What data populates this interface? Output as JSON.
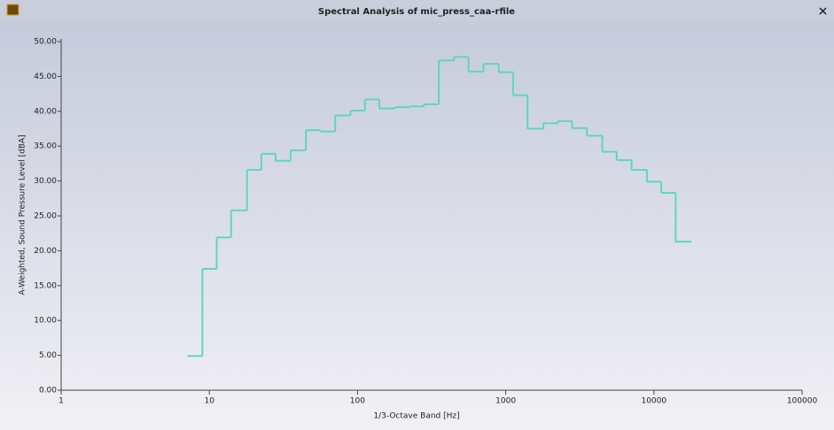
{
  "chart_data": {
    "type": "step",
    "title": "Spectral Analysis of mic_press_caa-rfile",
    "x_label": "1/3-Octave Band [Hz]",
    "y_label": "A-Weighted, Sound Pressure Level [dBA]",
    "x": [
      8,
      10,
      12.5,
      16,
      20,
      25,
      31.5,
      40,
      50,
      63,
      80,
      100,
      125,
      160,
      200,
      250,
      315,
      400,
      500,
      630,
      800,
      1000,
      1250,
      1600,
      2000,
      2500,
      3150,
      4000,
      5000,
      6300,
      8000,
      10000,
      12500,
      16000
    ],
    "values": [
      4.9,
      17.4,
      21.9,
      25.8,
      31.6,
      33.9,
      32.9,
      34.4,
      37.3,
      37.1,
      39.4,
      40.1,
      41.7,
      40.4,
      40.6,
      40.7,
      41.0,
      47.3,
      47.8,
      45.7,
      46.8,
      45.6,
      42.3,
      37.5,
      38.3,
      38.6,
      37.6,
      36.5,
      34.2,
      33.0,
      31.6,
      29.9,
      28.3,
      21.3
    ],
    "color": "#5fd6c2",
    "x_log": true,
    "xlim": [
      1,
      100000
    ],
    "xticks": [
      1,
      10,
      100,
      1000,
      10000,
      100000
    ],
    "ylim": [
      0,
      50
    ],
    "yticks": [
      {
        "value": 0,
        "label": "0.00"
      },
      {
        "value": 5,
        "label": "5.00"
      },
      {
        "value": 10,
        "label": "10.00"
      },
      {
        "value": 15,
        "label": "15.00"
      },
      {
        "value": 20,
        "label": "20.00"
      },
      {
        "value": 25,
        "label": "25.00"
      },
      {
        "value": 30,
        "label": "30.00"
      },
      {
        "value": 35,
        "label": "35.00"
      },
      {
        "value": 40,
        "label": "40.00"
      },
      {
        "value": 45,
        "label": "45.00"
      },
      {
        "value": 50,
        "label": "50.00"
      }
    ]
  }
}
